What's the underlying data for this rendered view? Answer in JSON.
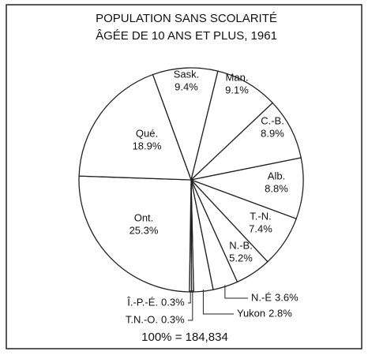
{
  "chart_data": {
    "type": "pie",
    "title": "POPULATION SANS SCOLARITÉ",
    "subtitle": "ÂGÉE DE 10 ANS ET PLUS, 1961",
    "note": "100% = 184,834",
    "color": "#ffffff",
    "categories": [
      "Sask.",
      "Man.",
      "C.-B.",
      "Alb.",
      "T.-N.",
      "N.-B.",
      "N.-É",
      "Yukon",
      "T.N.-O.",
      "Î.-P.-É.",
      "Ont.",
      "Qué."
    ],
    "values": [
      9.4,
      9.1,
      8.9,
      8.8,
      7.4,
      5.2,
      3.6,
      2.8,
      0.3,
      0.3,
      25.3,
      18.9
    ],
    "value_labels": [
      "9.4%",
      "9.1%",
      "8.9%",
      "8.8%",
      "7.4%",
      "5.2%",
      "3.6%",
      "2.8%",
      "0.3%",
      "0.3%",
      "25.3%",
      "18.9%"
    ]
  }
}
